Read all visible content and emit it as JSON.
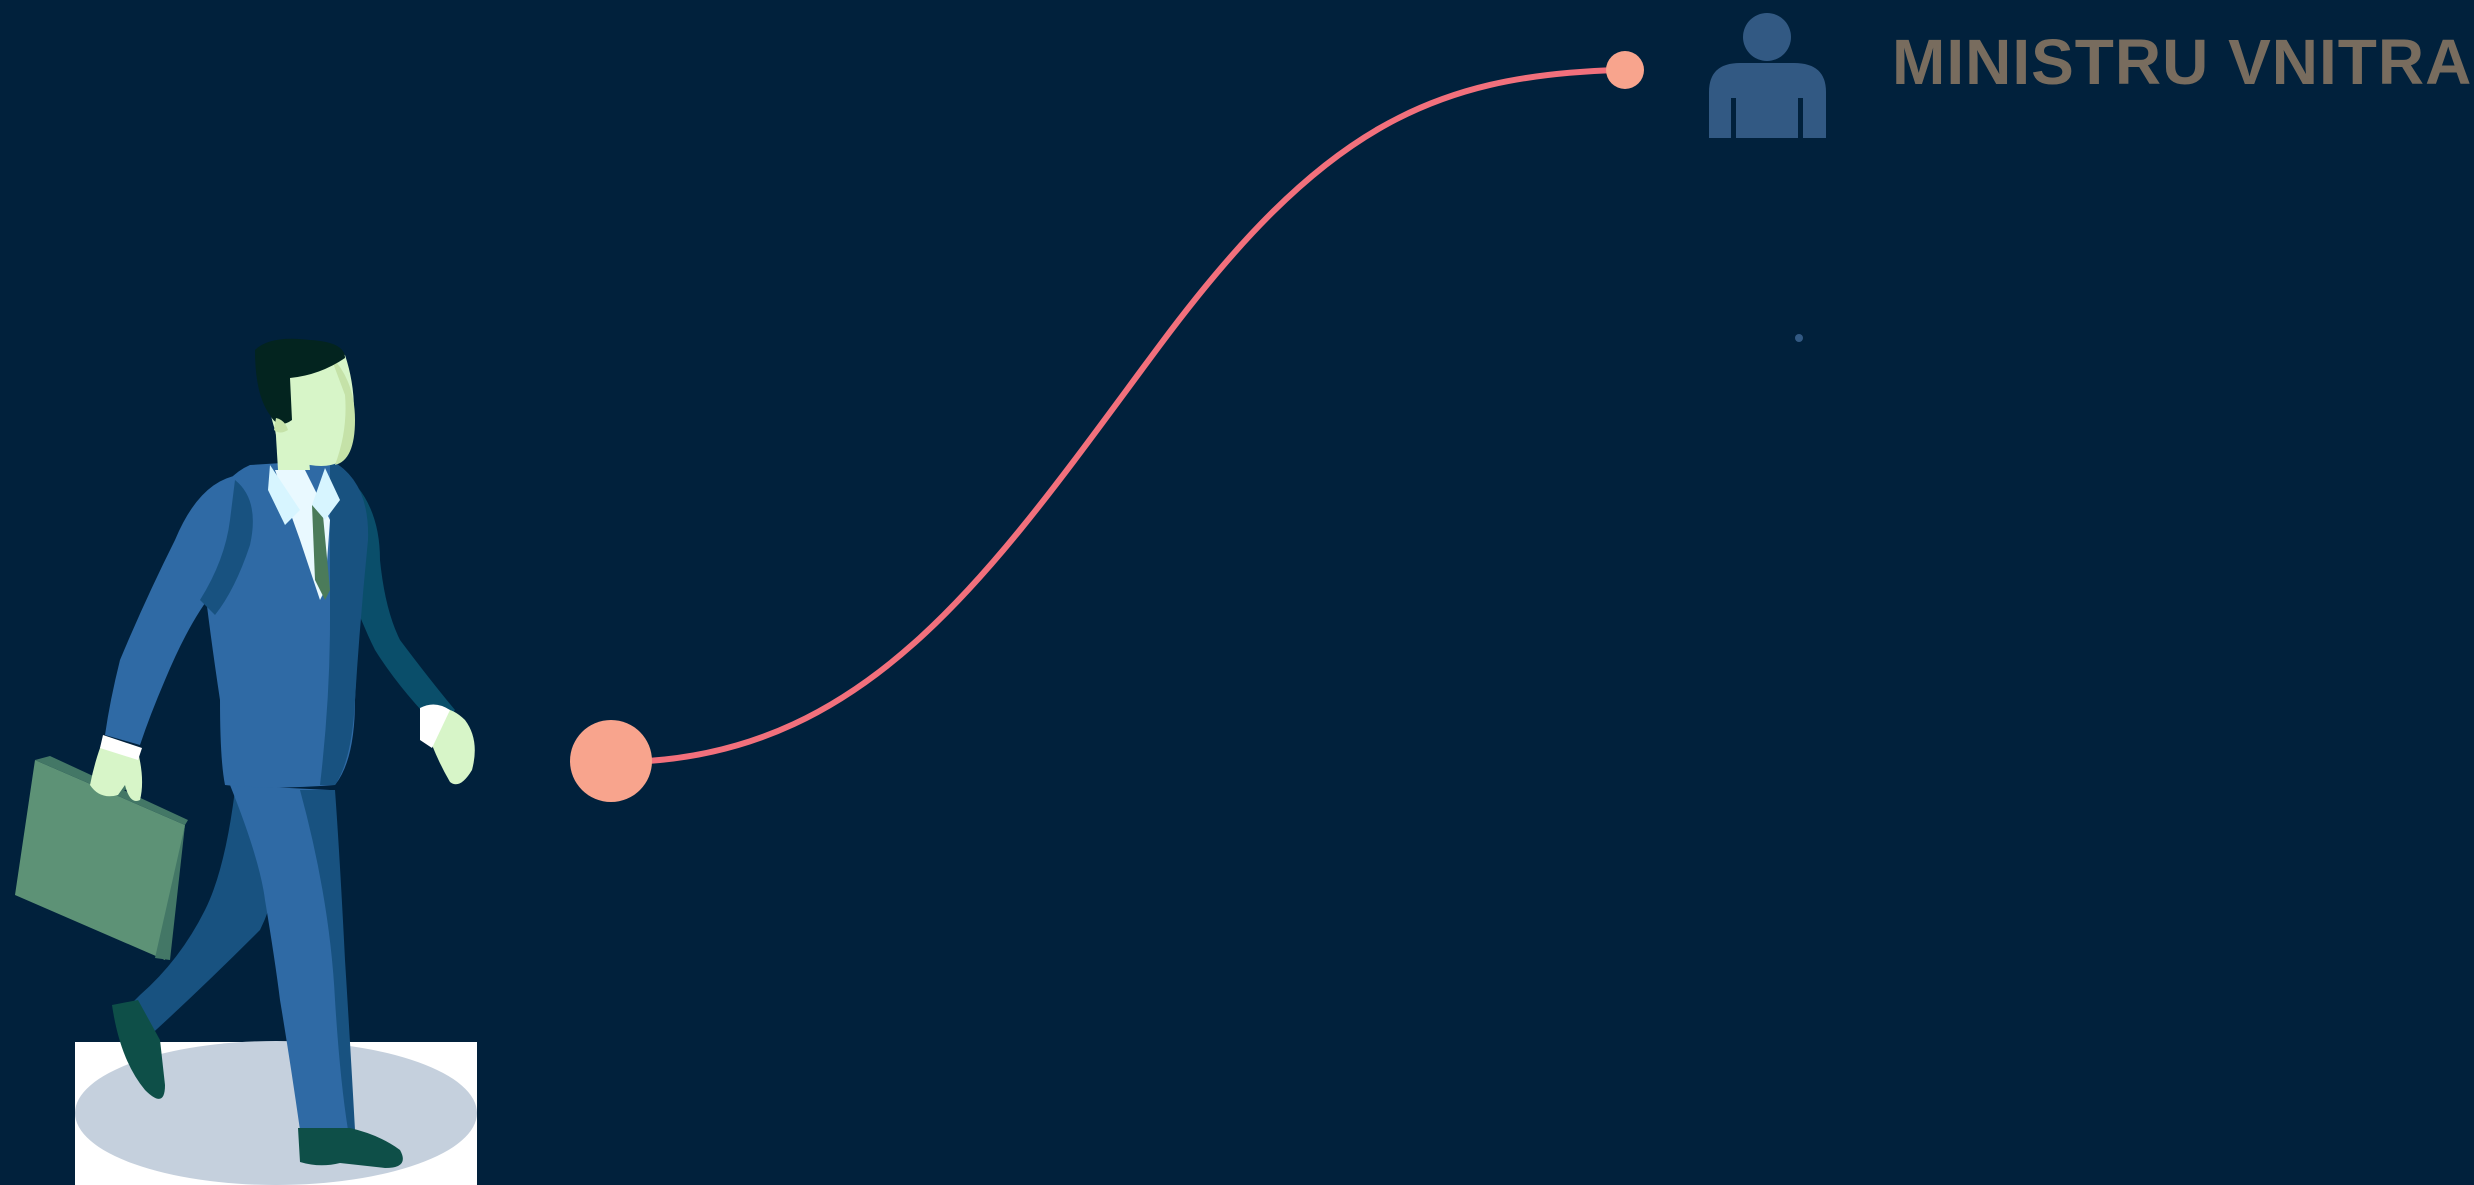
{
  "slide": {
    "title": "MINISTRU VNITRA"
  },
  "colors": {
    "background": "#01213c",
    "path_line": "#f2707c",
    "path_endpoints": "#f8a48d",
    "person_icon": "#325983",
    "title_text": "#786c5e",
    "suit": "#2f6aa5",
    "suit_shadow": "#185280",
    "briefcase": "#5d9276",
    "skin": "#d7f5c8",
    "shadow_ellipse": "#c5d0dd"
  },
  "icons": {
    "person": "person-icon",
    "businessman": "businessman-illustration",
    "briefcase": "briefcase-icon"
  }
}
